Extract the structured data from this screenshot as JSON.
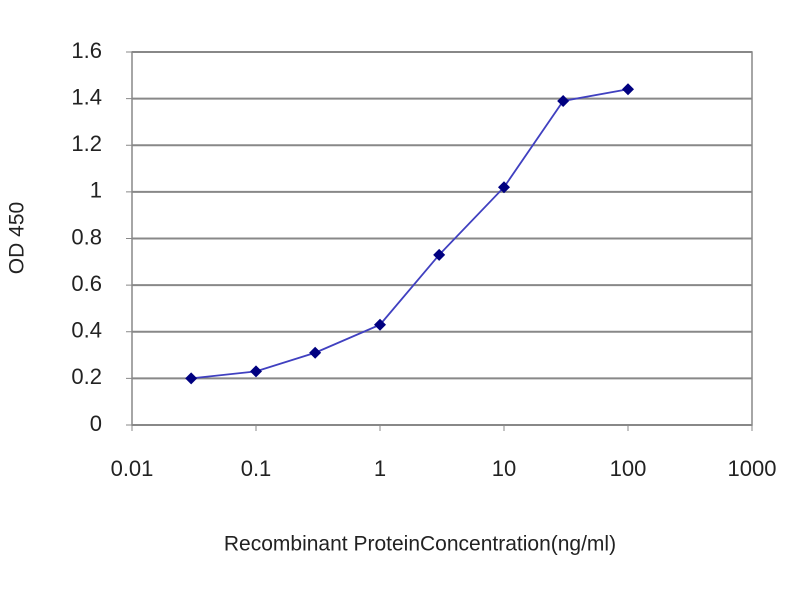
{
  "chart_data": {
    "type": "line",
    "x_label": "Recombinant ProteinConcentration(ng/ml)",
    "y_label": "OD 450",
    "x": [
      0.03,
      0.1,
      0.3,
      1,
      3,
      10,
      30,
      100
    ],
    "values": [
      0.2,
      0.23,
      0.31,
      0.43,
      0.73,
      1.02,
      1.39,
      1.44
    ],
    "color": "#000080",
    "xscale": "log",
    "xlim": [
      0.01,
      1000
    ],
    "xticks": [
      0.01,
      0.1,
      1,
      10,
      100,
      1000
    ],
    "ylim": [
      0,
      1.6
    ],
    "yticks": [
      0,
      0.2,
      0.4,
      0.6,
      0.8,
      1,
      1.2,
      1.4,
      1.6
    ],
    "grid": true
  }
}
